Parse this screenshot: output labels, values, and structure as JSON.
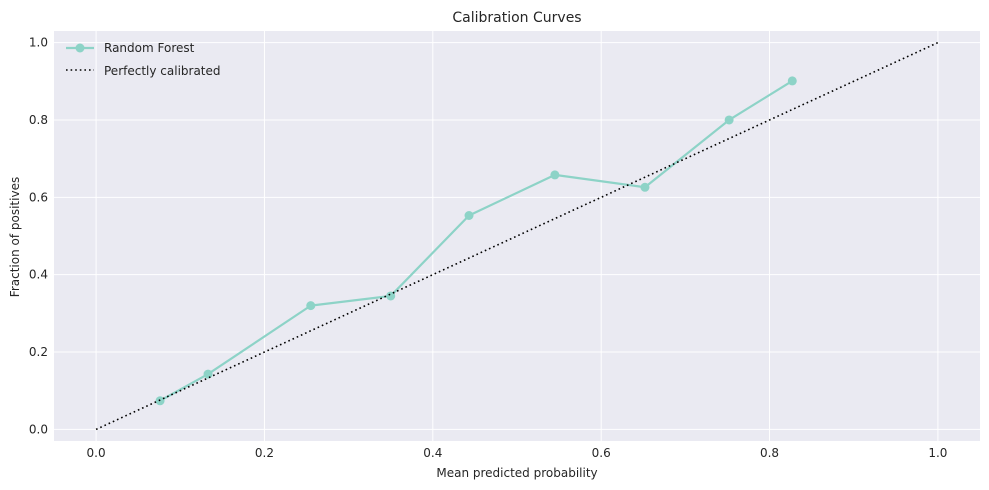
{
  "chart_data": {
    "type": "line",
    "title": "Calibration Curves",
    "xlabel": "Mean predicted probability",
    "ylabel": "Fraction of positives",
    "xlim": [
      -0.05,
      1.05
    ],
    "ylim": [
      -0.03,
      1.03
    ],
    "xticks": [
      "0.0",
      "0.2",
      "0.4",
      "0.6",
      "0.8",
      "1.0"
    ],
    "yticks": [
      "0.0",
      "0.2",
      "0.4",
      "0.6",
      "0.8",
      "1.0"
    ],
    "grid": true,
    "legend_position": "top-left",
    "series": [
      {
        "name": "Random Forest",
        "color": "#8dd3c7",
        "style": "solid-with-markers",
        "x": [
          0.076,
          0.133,
          0.255,
          0.35,
          0.443,
          0.545,
          0.652,
          0.752,
          0.827
        ],
        "y": [
          0.074,
          0.143,
          0.32,
          0.345,
          0.553,
          0.658,
          0.626,
          0.8,
          0.901
        ]
      },
      {
        "name": "Perfectly calibrated",
        "color": "#000000",
        "style": "dotted",
        "x": [
          0.0,
          1.0
        ],
        "y": [
          0.0,
          1.0
        ]
      }
    ]
  }
}
